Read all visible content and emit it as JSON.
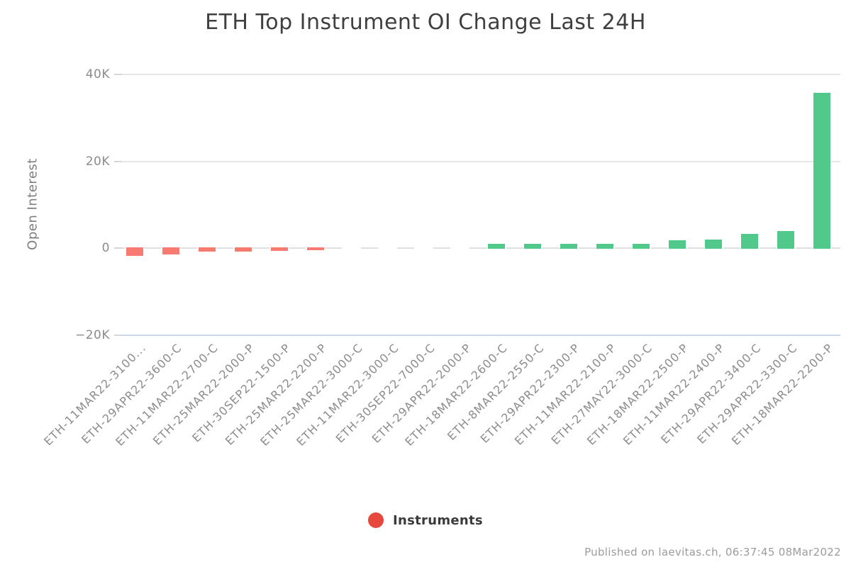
{
  "title": "ETH Top Instrument OI Change Last 24H",
  "footer": "Published on laevitas.ch, 06:37:45 08Mar2022",
  "legend": {
    "label": "Instruments",
    "marker_color": "#e8473c"
  },
  "chart_data": {
    "type": "bar",
    "title": "ETH Top Instrument OI Change Last 24H",
    "xlabel": "",
    "ylabel": "Open Interest",
    "ylim": [
      -20000,
      40000
    ],
    "ytick_labels": [
      "40K",
      "20K",
      "0",
      "−20K"
    ],
    "ytick_values": [
      40000,
      20000,
      0,
      -20000
    ],
    "grid": "horizontal",
    "legend_position": "bottom-center",
    "categories": [
      "ETH-11MAR22-3100...",
      "ETH-29APR22-3600-C",
      "ETH-11MAR22-2700-C",
      "ETH-25MAR22-2000-P",
      "ETH-30SEP22-1500-P",
      "ETH-25MAR22-2200-P",
      "ETH-25MAR22-3000-C",
      "ETH-11MAR22-3000-C",
      "ETH-30SEP22-7000-C",
      "ETH-29APR22-2000-P",
      "ETH-18MAR22-2600-C",
      "ETH-8MAR22-2550-C",
      "ETH-29APR22-2300-P",
      "ETH-11MAR22-2100-P",
      "ETH-27MAY22-3000-C",
      "ETH-18MAR22-2500-P",
      "ETH-11MAR22-2400-P",
      "ETH-29APR22-3400-C",
      "ETH-29APR22-3300-C",
      "ETH-18MAR22-2200-P"
    ],
    "values": [
      -1700,
      -1400,
      -700,
      -700,
      -550,
      -500,
      0,
      0,
      0,
      0,
      1100,
      1100,
      1100,
      1100,
      1100,
      1800,
      2100,
      3400,
      4000,
      35800
    ],
    "colors": {
      "positive_bar": "#50c98a",
      "negative_bar": "#f87b72",
      "gridline": "#e6e6e6",
      "zero_line": "#e0e0e0",
      "axis_line": "#ccd6eb"
    }
  }
}
